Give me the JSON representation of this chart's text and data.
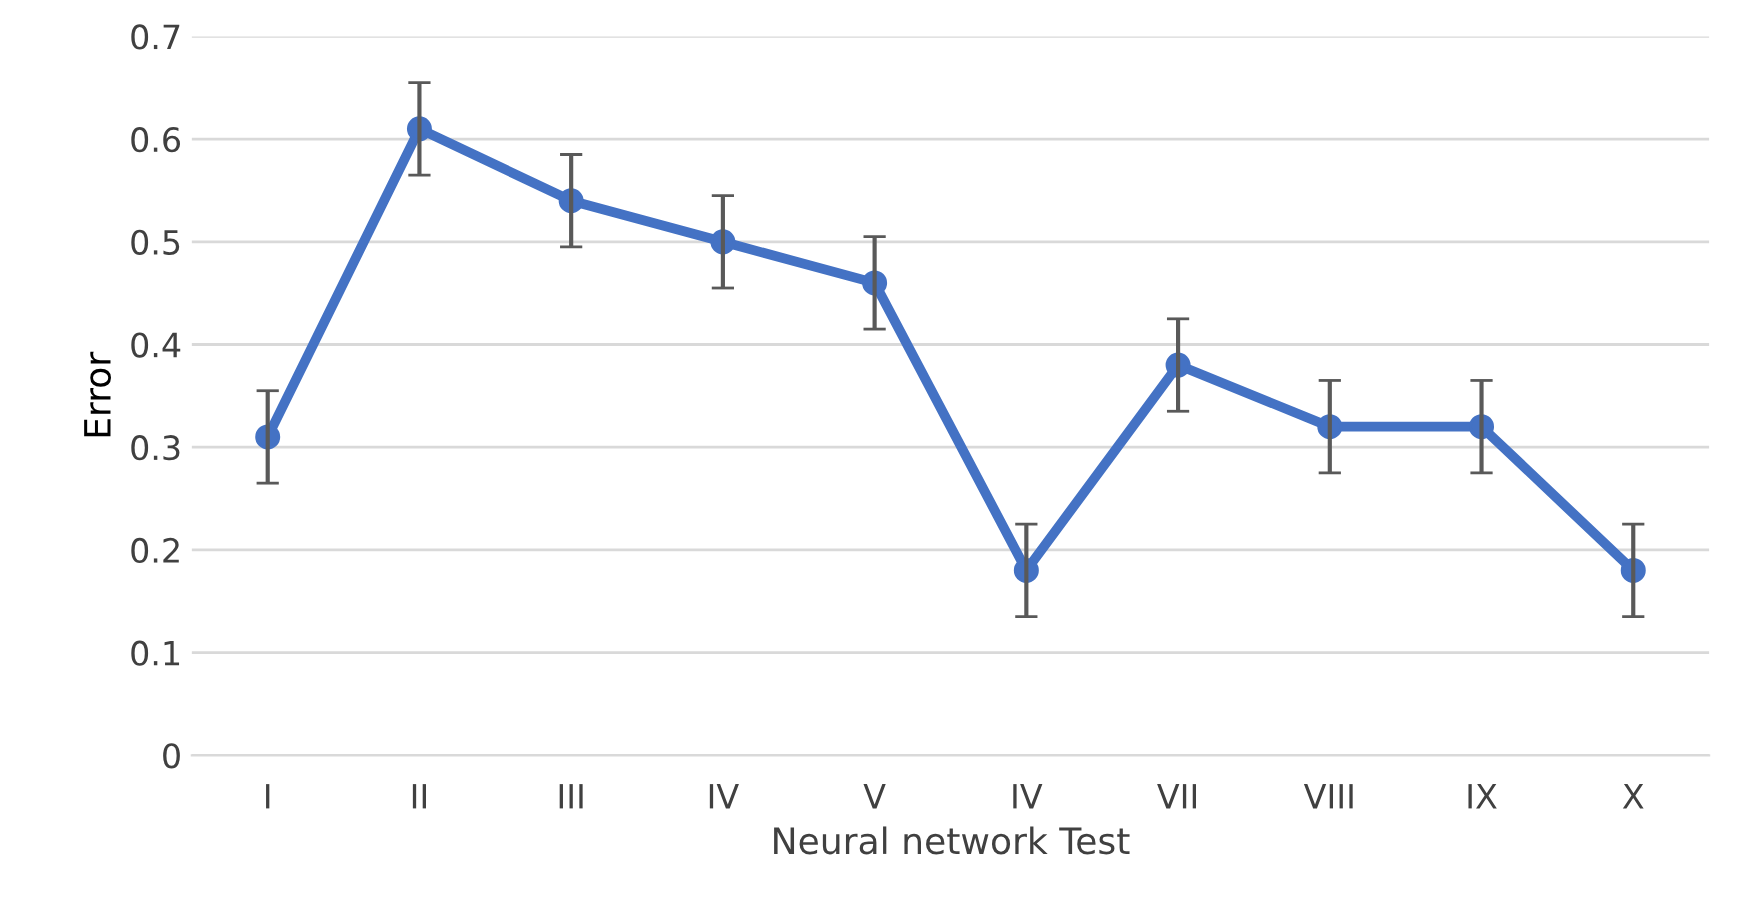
{
  "chart_data": {
    "type": "line",
    "xlabel": "Neural network Test",
    "ylabel": "Error",
    "categories": [
      "I",
      "II",
      "III",
      "IV",
      "V",
      "IV",
      "VII",
      "VIII",
      "IX",
      "X"
    ],
    "series": [
      {
        "color": "#4472c4",
        "values": [
          0.31,
          0.61,
          0.54,
          0.5,
          0.46,
          0.18,
          0.38,
          0.32,
          0.32,
          0.18
        ],
        "errors": [
          0.045,
          0.045,
          0.045,
          0.045,
          0.045,
          0.045,
          0.045,
          0.045,
          0.045,
          0.045
        ]
      }
    ],
    "ylim": [
      0,
      0.7
    ],
    "yticks": [
      0,
      0.1,
      0.2,
      0.3,
      0.4,
      0.5,
      0.6,
      0.7
    ],
    "grid": "y",
    "marker": "circle",
    "line_style": "solid",
    "legend": false
  }
}
